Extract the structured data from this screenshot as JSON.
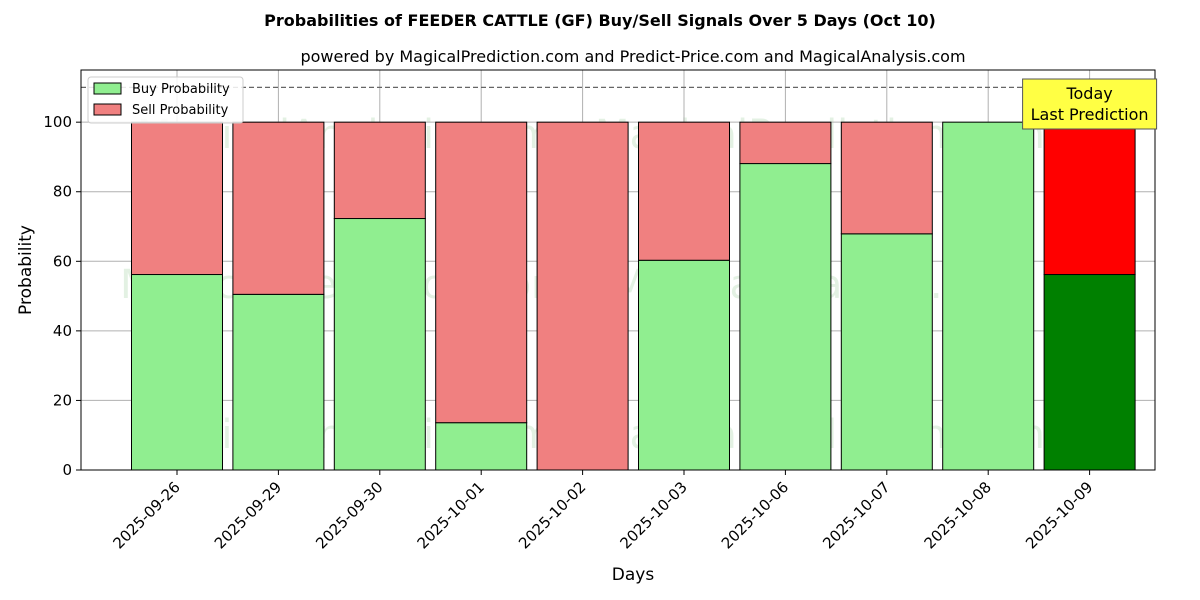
{
  "chart_data": {
    "type": "bar",
    "stacked": true,
    "title": "Probabilities of FEEDER CATTLE (GF) Buy/Sell Signals Over 5 Days (Oct 10)",
    "subtitle": "powered by MagicalPrediction.com and Predict-Price.com and MagicalAnalysis.com",
    "xlabel": "Days",
    "ylabel": "Probability",
    "ylim": [
      0,
      115
    ],
    "yticks": [
      0,
      20,
      40,
      60,
      80,
      100
    ],
    "reference_line": 110,
    "grid": true,
    "legend_position": "top-left",
    "categories": [
      "2025-09-26",
      "2025-09-29",
      "2025-09-30",
      "2025-10-01",
      "2025-10-02",
      "2025-10-03",
      "2025-10-06",
      "2025-10-07",
      "2025-10-08",
      "2025-10-09"
    ],
    "series": [
      {
        "name": "Buy Probability",
        "color": "#90ee90",
        "values": [
          56.2,
          50.5,
          72.3,
          13.6,
          0.0,
          60.3,
          88.1,
          67.9,
          100.0,
          56.2
        ]
      },
      {
        "name": "Sell Probability",
        "color": "#f08080",
        "values": [
          43.8,
          49.5,
          27.7,
          86.4,
          100.0,
          39.7,
          11.9,
          32.1,
          0.0,
          43.8
        ]
      }
    ],
    "highlight": {
      "index": 9,
      "buy_color": "#008000",
      "sell_color": "#ff0000"
    },
    "annotation": {
      "lines": [
        "Today",
        "Last Prediction"
      ],
      "background": "#ffff44"
    },
    "watermarks": [
      "MagicalAnalysis.com",
      "MagicalPrediction.com"
    ]
  }
}
